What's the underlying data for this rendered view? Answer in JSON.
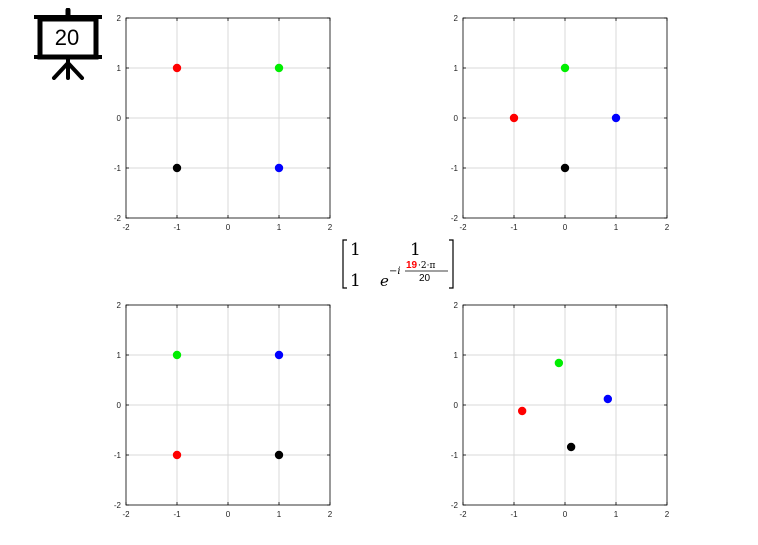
{
  "slide": {
    "number": "20"
  },
  "formula": {
    "r1c1": "1",
    "r1c2": "1",
    "r2c1": "1",
    "base": "e",
    "exp_prefix": "−i",
    "numerator_highlight": "19",
    "numerator_rest": "·2·π",
    "denominator": "20",
    "highlight_color": "#ff0000"
  },
  "chart_data": [
    {
      "type": "scatter",
      "xlim": [
        -2,
        2
      ],
      "ylim": [
        -2,
        2
      ],
      "xticks": [
        "-2",
        "-1",
        "0",
        "1",
        "2"
      ],
      "yticks": [
        "2",
        "1",
        "0",
        "-1",
        "-2"
      ],
      "grid": true,
      "points": [
        {
          "x": -1,
          "y": 1,
          "color": "#ff0000"
        },
        {
          "x": 1,
          "y": 1,
          "color": "#00ee00"
        },
        {
          "x": -1,
          "y": -1,
          "color": "#000000"
        },
        {
          "x": 1,
          "y": -1,
          "color": "#0000ff"
        }
      ]
    },
    {
      "type": "scatter",
      "xlim": [
        -2,
        2
      ],
      "ylim": [
        -2,
        2
      ],
      "xticks": [
        "-2",
        "-1",
        "0",
        "1",
        "2"
      ],
      "yticks": [
        "2",
        "1",
        "0",
        "-1",
        "-2"
      ],
      "grid": true,
      "points": [
        {
          "x": -1,
          "y": 0,
          "color": "#ff0000"
        },
        {
          "x": 0,
          "y": 1,
          "color": "#00ee00"
        },
        {
          "x": 0,
          "y": -1,
          "color": "#000000"
        },
        {
          "x": 1,
          "y": 0,
          "color": "#0000ff"
        }
      ]
    },
    {
      "type": "scatter",
      "xlim": [
        -2,
        2
      ],
      "ylim": [
        -2,
        2
      ],
      "xticks": [
        "-2",
        "-1",
        "0",
        "1",
        "2"
      ],
      "yticks": [
        "2",
        "1",
        "0",
        "-1",
        "-2"
      ],
      "grid": true,
      "points": [
        {
          "x": -1,
          "y": -1,
          "color": "#ff0000"
        },
        {
          "x": -1,
          "y": 1,
          "color": "#00ee00"
        },
        {
          "x": 1,
          "y": -1,
          "color": "#000000"
        },
        {
          "x": 1,
          "y": 1,
          "color": "#0000ff"
        }
      ]
    },
    {
      "type": "scatter",
      "xlim": [
        -2,
        2
      ],
      "ylim": [
        -2,
        2
      ],
      "xticks": [
        "-2",
        "-1",
        "0",
        "1",
        "2"
      ],
      "yticks": [
        "2",
        "1",
        "0",
        "-1",
        "-2"
      ],
      "grid": true,
      "points": [
        {
          "x": -0.84,
          "y": -0.12,
          "color": "#ff0000"
        },
        {
          "x": -0.12,
          "y": 0.84,
          "color": "#00ee00"
        },
        {
          "x": 0.12,
          "y": -0.84,
          "color": "#000000"
        },
        {
          "x": 0.84,
          "y": 0.12,
          "color": "#0000ff"
        }
      ]
    }
  ]
}
